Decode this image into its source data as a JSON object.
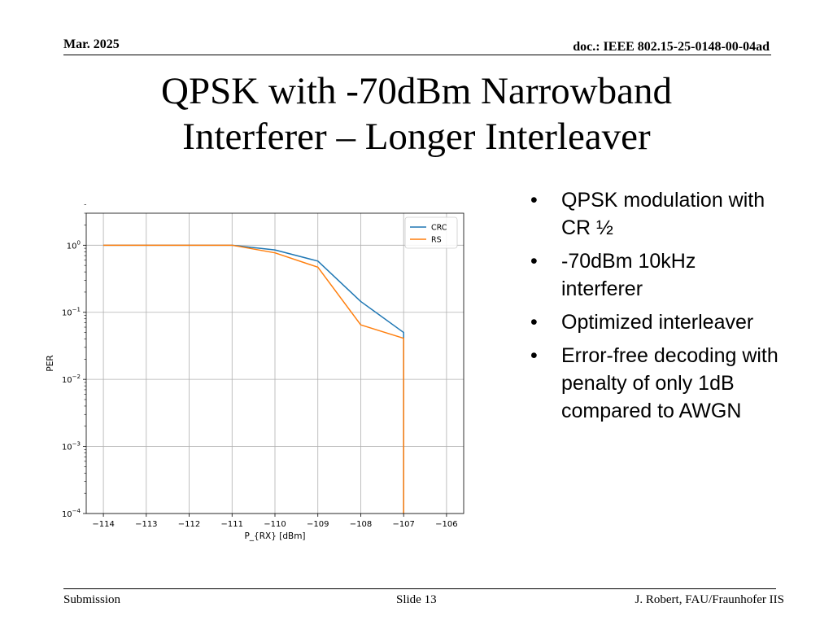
{
  "header": {
    "date": "Mar. 2025",
    "doc": "doc.: IEEE 802.15-25-0148-00-04ad"
  },
  "title": {
    "line1": "QPSK with -70dBm Narrowband",
    "line2": "Interferer – Longer Interleaver"
  },
  "bullets": [
    "QPSK modulation with CR ½",
    "-70dBm 10kHz interferer",
    "Optimized interleaver",
    "Error-free decoding with penalty of only 1dB compared to AWGN"
  ],
  "footer": {
    "left": "Submission",
    "center": "Slide 13",
    "right": "J. Robert, FAU/Fraunhofer IIS"
  },
  "chart_data": {
    "type": "line",
    "xlabel": "P_{RX} [dBm]",
    "ylabel": "PER",
    "yscale": "log",
    "xlim": [
      -114.4,
      -105.6
    ],
    "ylim": [
      0.0001,
      3
    ],
    "xticks": [
      -114,
      -113,
      -112,
      -111,
      -110,
      -109,
      -108,
      -107,
      -106
    ],
    "xtick_labels": [
      "−114",
      "−113",
      "−112",
      "−111",
      "−110",
      "−109",
      "−108",
      "−107",
      "−106"
    ],
    "yticks": [
      {
        "value": 1,
        "base": "10",
        "exp": "0"
      },
      {
        "value": 0.1,
        "base": "10",
        "exp": "−1"
      },
      {
        "value": 0.01,
        "base": "10",
        "exp": "−2"
      },
      {
        "value": 0.001,
        "base": "10",
        "exp": "−3"
      },
      {
        "value": 0.0001,
        "base": "10",
        "exp": "−4"
      }
    ],
    "grid": true,
    "legend_position": "top-right",
    "series": [
      {
        "name": "CRC",
        "color": "#1f77b4",
        "x": [
          -114,
          -113,
          -112,
          -111,
          -110,
          -109,
          -108,
          -107,
          -107
        ],
        "y": [
          1.0,
          1.0,
          1.0,
          1.0,
          0.85,
          0.58,
          0.145,
          0.05,
          0.0001
        ]
      },
      {
        "name": "RS",
        "color": "#ff7f0e",
        "x": [
          -114,
          -113,
          -112,
          -111,
          -110,
          -109,
          -108,
          -107,
          -107
        ],
        "y": [
          1.0,
          1.0,
          1.0,
          1.0,
          0.77,
          0.47,
          0.065,
          0.041,
          0.0001
        ]
      }
    ]
  }
}
